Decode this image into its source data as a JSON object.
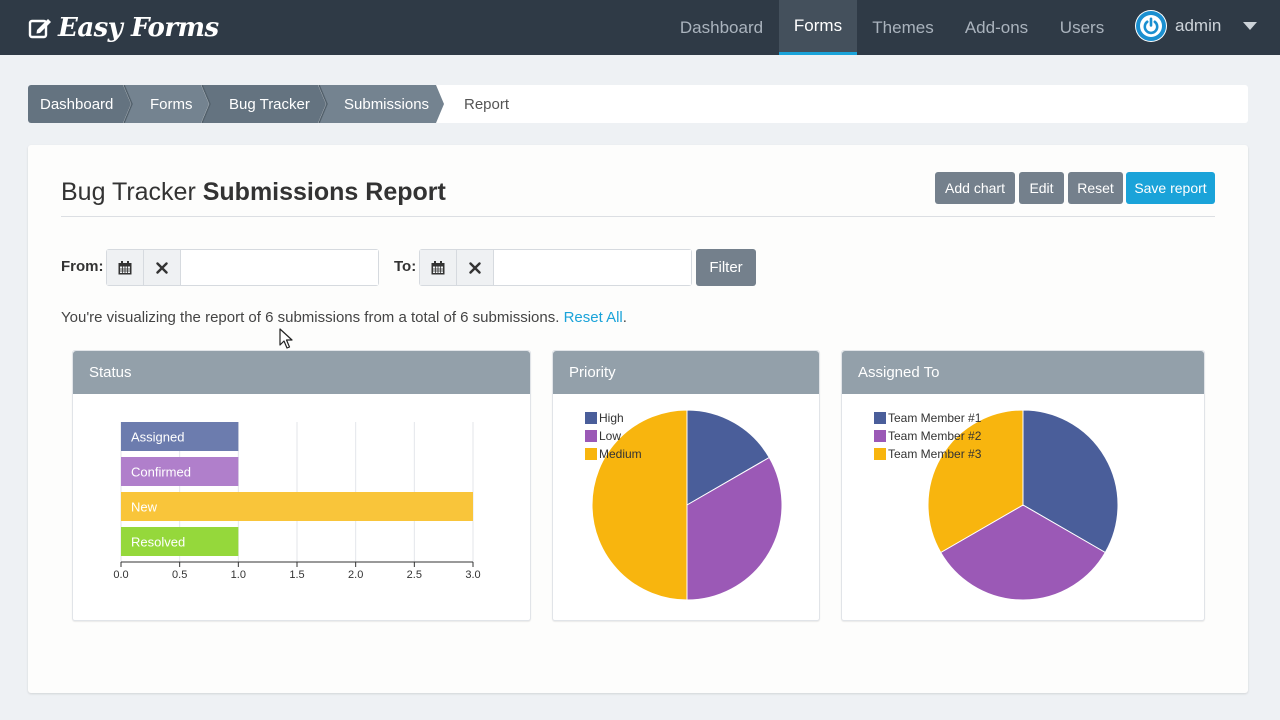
{
  "app": {
    "name": "Easy Forms"
  },
  "nav": {
    "items": [
      {
        "label": "Dashboard",
        "active": false
      },
      {
        "label": "Forms",
        "active": true
      },
      {
        "label": "Themes",
        "active": false
      },
      {
        "label": "Add-ons",
        "active": false
      },
      {
        "label": "Users",
        "active": false
      }
    ],
    "user": "admin"
  },
  "breadcrumb": {
    "items": [
      "Dashboard",
      "Forms",
      "Bug Tracker",
      "Submissions"
    ],
    "current": "Report"
  },
  "page": {
    "title_light": "Bug Tracker",
    "title_bold": "Submissions Report",
    "buttons": {
      "add_chart": "Add chart",
      "edit": "Edit",
      "reset": "Reset",
      "save_report": "Save report"
    }
  },
  "filter": {
    "from_label": "From:",
    "to_label": "To:",
    "from_value": "",
    "to_value": "",
    "button": "Filter"
  },
  "info": {
    "text": "You're visualizing the report of 6 submissions from a total of 6 submissions.",
    "link": "Reset All",
    "suffix": "."
  },
  "colors": {
    "navy": "#4a5e9a",
    "purple": "#9b59b6",
    "amber": "#f8b50e",
    "green": "#8fd334",
    "accent": "#1aa3d9"
  },
  "chart_data": [
    {
      "type": "bar",
      "title": "Status",
      "orientation": "horizontal",
      "categories": [
        "Assigned",
        "Confirmed",
        "New",
        "Resolved"
      ],
      "values": [
        1,
        1,
        3,
        1
      ],
      "colors": [
        "#6c7cae",
        "#b07fcb",
        "#f9c53a",
        "#95d83b"
      ],
      "xlim": [
        0,
        3
      ],
      "xticks": [
        "0.0",
        "0.5",
        "1.0",
        "1.5",
        "2.0",
        "2.5",
        "3.0"
      ],
      "grid": true
    },
    {
      "type": "pie",
      "title": "Priority",
      "labels": [
        "High",
        "Low",
        "Medium"
      ],
      "values": [
        1,
        2,
        3
      ],
      "colors": [
        "#4a5e9a",
        "#9b59b6",
        "#f8b50e"
      ],
      "legend": "top-left"
    },
    {
      "type": "pie",
      "title": "Assigned To",
      "labels": [
        "Team Member #1",
        "Team Member #2",
        "Team Member #3"
      ],
      "values": [
        2,
        2,
        2
      ],
      "colors": [
        "#4a5e9a",
        "#9b59b6",
        "#f8b50e"
      ],
      "legend": "top-left"
    }
  ]
}
